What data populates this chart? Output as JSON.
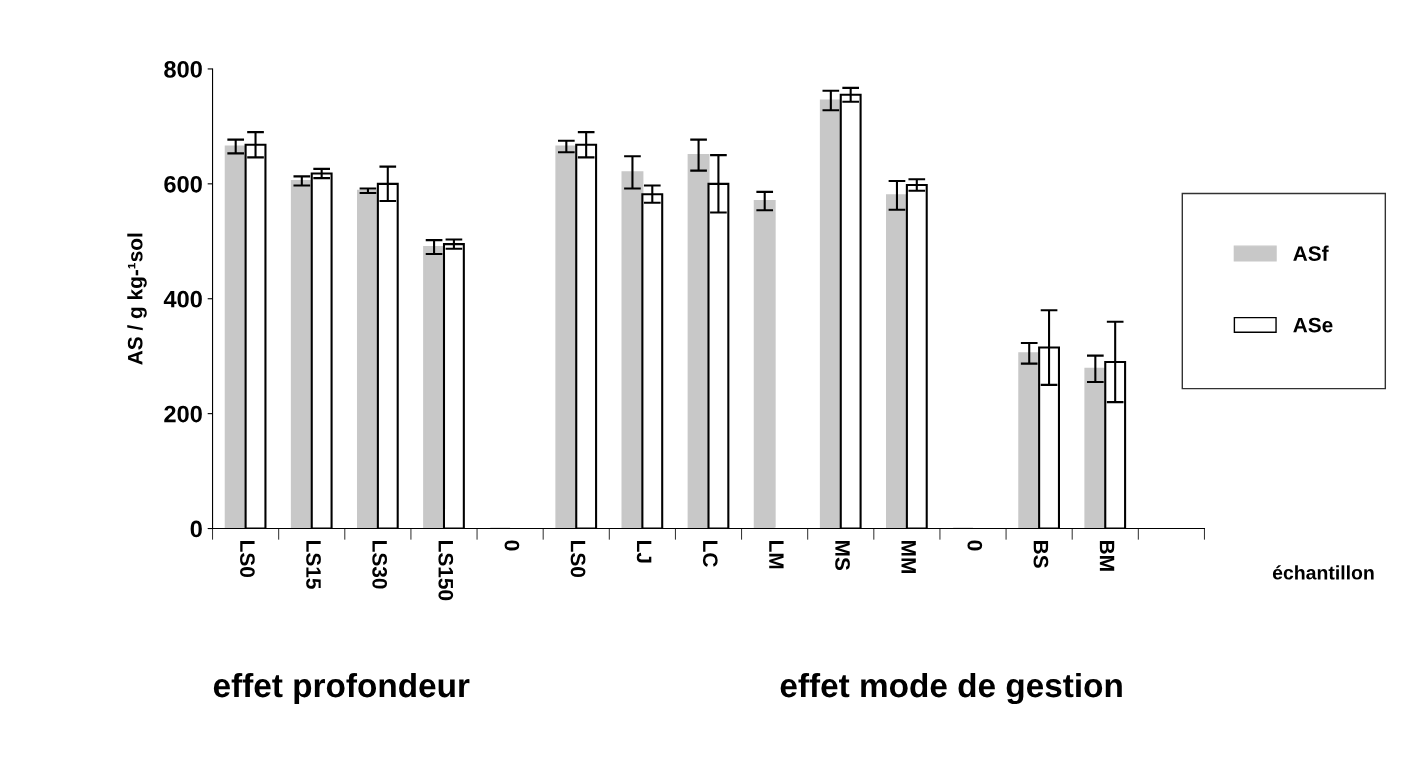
{
  "chart_data": {
    "type": "bar",
    "ylabel": "AS / g kg-¹sol",
    "xlabel": "échantillon",
    "categories": [
      "LS0",
      "LS15",
      "LS30",
      "LS150",
      "0",
      "LS0",
      "LJ",
      "LC",
      "LM",
      "MS",
      "MM",
      "0",
      "BS",
      "BM",
      null
    ],
    "series": [
      {
        "name": "ASf",
        "color": "#c8c8c8",
        "values": [
          665,
          605,
          588,
          490,
          0,
          665,
          620,
          650,
          570,
          745,
          580,
          0,
          305,
          278,
          null
        ],
        "errors": [
          12,
          8,
          4,
          12,
          null,
          10,
          28,
          27,
          16,
          17,
          25,
          null,
          18,
          23,
          null
        ]
      },
      {
        "name": "ASe",
        "color": "#ffffff",
        "values": [
          668,
          618,
          600,
          495,
          0,
          668,
          582,
          600,
          0,
          755,
          598,
          0,
          315,
          290,
          null
        ],
        "errors": [
          22,
          8,
          30,
          8,
          null,
          22,
          15,
          50,
          null,
          12,
          10,
          null,
          65,
          70,
          null
        ]
      }
    ],
    "ylim": [
      0,
      800
    ],
    "yticks": [
      0,
      200,
      400,
      600,
      800
    ],
    "grid": false,
    "legend": "right",
    "annotations": [
      "effet profondeur",
      "effet mode de gestion"
    ]
  }
}
